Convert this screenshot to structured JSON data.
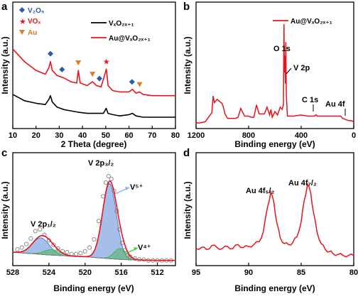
{
  "colors": {
    "vxo": "#000000",
    "au_vxo": "#e8141a",
    "v2o5": "#2b5aa8",
    "vox": "#e8141a",
    "au": "#e07b22",
    "fit_blue": "#3a6fd0",
    "fit_green": "#36b83a",
    "envelope": "#7f7f7f",
    "arrow_blue": "#8db0e8",
    "arrow_green": "#4cd23a"
  },
  "chart_data": [
    {
      "id": "a",
      "type": "line",
      "panel_label": "a",
      "xlabel": "2 Theta (degree)",
      "ylabel": "Intensity (a.u.)",
      "xlim": [
        10,
        80
      ],
      "xticks": [
        "10",
        "20",
        "30",
        "40",
        "50",
        "60",
        "70",
        "80"
      ],
      "grid": false,
      "legend": {
        "placement": "top-right",
        "entries": [
          {
            "label": "VₓO₂ₓ₊₁",
            "series": 0
          },
          {
            "label": "Au@VₓO₂ₓ₊₁",
            "series": 1
          }
        ]
      },
      "marker_legend": [
        {
          "label": "V₂O₅",
          "marker": "diamond",
          "color": "#2b5aa8"
        },
        {
          "label": "VOₓ",
          "marker": "star",
          "color": "#e8141a"
        },
        {
          "label": "Au",
          "marker": "triangle",
          "color": "#e07b22"
        }
      ],
      "series": [
        {
          "name": "VₓO₂ₓ₊₁",
          "color": "#000000",
          "x": [
            10,
            15,
            20,
            24,
            25.5,
            26.2,
            27,
            29,
            32,
            35,
            38,
            42,
            46,
            49,
            50.2,
            51,
            53,
            56,
            60,
            61.5,
            63,
            66,
            70,
            75,
            80
          ],
          "y": [
            0.27,
            0.22,
            0.2,
            0.19,
            0.23,
            0.26,
            0.21,
            0.17,
            0.15,
            0.14,
            0.13,
            0.12,
            0.12,
            0.12,
            0.16,
            0.12,
            0.11,
            0.1,
            0.11,
            0.12,
            0.1,
            0.09,
            0.09,
            0.09,
            0.09
          ]
        },
        {
          "name": "Au@VₓO₂ₓ₊₁",
          "color": "#e8141a",
          "x": [
            10,
            15,
            20,
            24,
            25.5,
            26.2,
            27,
            29,
            32,
            35,
            37.5,
            38.2,
            39,
            42,
            44.3,
            46,
            48,
            50.3,
            51,
            53,
            56,
            60,
            61.5,
            63,
            64.5,
            66,
            70,
            75,
            80
          ],
          "y": [
            0.63,
            0.53,
            0.46,
            0.43,
            0.48,
            0.53,
            0.46,
            0.42,
            0.4,
            0.37,
            0.36,
            0.46,
            0.36,
            0.34,
            0.37,
            0.34,
            0.33,
            0.47,
            0.34,
            0.3,
            0.29,
            0.29,
            0.31,
            0.28,
            0.29,
            0.27,
            0.26,
            0.26,
            0.26
          ]
        }
      ],
      "peak_markers": [
        {
          "x": 26.2,
          "type": "diamond",
          "color": "#2b5aa8"
        },
        {
          "x": 31.2,
          "type": "diamond",
          "color": "#2b5aa8"
        },
        {
          "x": 38.2,
          "type": "triangle",
          "color": "#e07b22"
        },
        {
          "x": 44.3,
          "type": "triangle",
          "color": "#e07b22"
        },
        {
          "x": 47.3,
          "type": "diamond",
          "color": "#2b5aa8"
        },
        {
          "x": 50.3,
          "type": "star",
          "color": "#e8141a"
        },
        {
          "x": 61.3,
          "type": "diamond",
          "color": "#2b5aa8"
        },
        {
          "x": 64.6,
          "type": "triangle",
          "color": "#e07b22"
        }
      ]
    },
    {
      "id": "b",
      "type": "line",
      "panel_label": "b",
      "xlabel": "Binding energy (eV)",
      "ylabel": "Intensity (a.u.)",
      "xlim": [
        1200,
        0
      ],
      "xticks": [
        "1200",
        "800",
        "400",
        "0"
      ],
      "grid": false,
      "legend": {
        "placement": "top-right",
        "entries": [
          {
            "label": "Au@VₓO₂ₓ₊₁",
            "series": 0
          }
        ]
      },
      "annotations": [
        {
          "text": "O 1s",
          "x": 531
        },
        {
          "text": "V 2p",
          "x": 517
        },
        {
          "text": "C 1s",
          "x": 285
        },
        {
          "text": "Au 4f",
          "x": 84
        }
      ],
      "series": [
        {
          "name": "Au@VₓO₂ₓ₊₁",
          "color": "#e8141a",
          "x": [
            1200,
            1170,
            1130,
            1080,
            1070,
            1060,
            1040,
            1020,
            1000,
            990,
            980,
            960,
            940,
            900,
            880,
            860,
            830,
            800,
            780,
            760,
            740,
            720,
            700,
            680,
            660,
            640,
            630,
            620,
            600,
            580,
            560,
            545,
            535,
            531,
            528,
            524,
            520,
            517,
            513,
            505,
            490,
            460,
            400,
            350,
            300,
            290,
            285,
            280,
            250,
            200,
            150,
            100,
            84,
            60,
            40,
            20,
            0
          ],
          "y": [
            0.0,
            0.0,
            0.01,
            0.09,
            0.24,
            0.18,
            0.21,
            0.19,
            0.17,
            0.13,
            0.08,
            0.04,
            0.04,
            0.04,
            0.05,
            0.13,
            0.06,
            0.06,
            0.05,
            0.05,
            0.16,
            0.08,
            0.08,
            0.08,
            0.14,
            0.07,
            0.12,
            0.05,
            0.1,
            0.07,
            0.14,
            0.12,
            0.16,
            0.88,
            0.45,
            0.6,
            0.35,
            0.72,
            0.25,
            0.06,
            0.06,
            0.06,
            0.07,
            0.06,
            0.06,
            0.07,
            0.07,
            0.06,
            0.06,
            0.06,
            0.06,
            0.06,
            0.04,
            0.03,
            0.02,
            0.02,
            0.01
          ]
        }
      ]
    },
    {
      "id": "c",
      "type": "line",
      "panel_label": "c",
      "xlabel": "Binding energy (eV)",
      "ylabel": "Intensity (a.u.)",
      "xlim": [
        528,
        510
      ],
      "xticks": [
        "528",
        "524",
        "520",
        "516",
        "512"
      ],
      "grid": false,
      "annotations": [
        {
          "text": "V 2p₁/₂"
        },
        {
          "text": "V 2p₃/₂"
        },
        {
          "text": "V⁵⁺"
        },
        {
          "text": "V⁴⁺"
        }
      ],
      "components": [
        {
          "name": "V5+ 2p3/2",
          "center": 517.3,
          "fwhm": 1.8,
          "height": 0.82,
          "color": "#3a6fd0"
        },
        {
          "name": "V4+ 2p3/2",
          "center": 516.1,
          "fwhm": 1.6,
          "height": 0.12,
          "color": "#36b83a"
        },
        {
          "name": "V5+ 2p1/2",
          "center": 524.9,
          "fwhm": 2.2,
          "height": 0.18,
          "color": "#3a6fd0"
        },
        {
          "name": "V4+ 2p1/2",
          "center": 523.7,
          "fwhm": 2.0,
          "height": 0.06,
          "color": "#36b83a"
        }
      ],
      "background": {
        "x": [
          528,
          524,
          520,
          516,
          512,
          510
        ],
        "y": [
          0.1,
          0.07,
          0.05,
          0.02,
          0.01,
          0.01
        ]
      },
      "raw_points": {
        "x": [
          527.5,
          527,
          526.5,
          526,
          525.5,
          525,
          524.5,
          524,
          523.5,
          523,
          522.5,
          522,
          521.5,
          521,
          520.5,
          520,
          519.5,
          519,
          518.5,
          518,
          517.7,
          517.4,
          517.1,
          516.8,
          516.5,
          516.2,
          515.9,
          515.6,
          515.3,
          515,
          514.5,
          514,
          513.5,
          513,
          512.5,
          512,
          511.5,
          511,
          510.5
        ],
        "y": [
          0.13,
          0.15,
          0.19,
          0.25,
          0.33,
          0.35,
          0.29,
          0.23,
          0.18,
          0.14,
          0.11,
          0.1,
          0.08,
          0.08,
          0.09,
          0.11,
          0.15,
          0.24,
          0.44,
          0.71,
          0.86,
          0.93,
          0.9,
          0.77,
          0.55,
          0.35,
          0.2,
          0.12,
          0.07,
          0.05,
          0.03,
          0.02,
          0.02,
          0.01,
          0.01,
          0.01,
          0.01,
          0.01,
          0.01
        ]
      }
    },
    {
      "id": "d",
      "type": "line",
      "panel_label": "d",
      "xlabel": "Binding energy (eV)",
      "ylabel": "Intensity (a.u.)",
      "xlim": [
        95,
        80
      ],
      "xticks": [
        "95",
        "90",
        "85",
        "80"
      ],
      "grid": false,
      "annotations": [
        {
          "text": "Au 4f₅/₂",
          "x": 87.8
        },
        {
          "text": "Au 4f₇/₂",
          "x": 84.2
        }
      ],
      "series": [
        {
          "name": "",
          "color": "#e8141a",
          "x": [
            95,
            94.5,
            94,
            93.5,
            93,
            92.5,
            92,
            91.5,
            91,
            90.5,
            90,
            89.5,
            89,
            88.6,
            88.2,
            87.9,
            87.6,
            87.3,
            87,
            86.6,
            86.2,
            85.8,
            85.4,
            85,
            84.7,
            84.4,
            84.1,
            83.8,
            83.5,
            83.1,
            82.7,
            82.3,
            82,
            81.5,
            81,
            80.5,
            80
          ],
          "y": [
            0.13,
            0.14,
            0.12,
            0.16,
            0.14,
            0.13,
            0.15,
            0.13,
            0.17,
            0.14,
            0.15,
            0.17,
            0.2,
            0.3,
            0.55,
            0.7,
            0.6,
            0.38,
            0.24,
            0.18,
            0.17,
            0.19,
            0.25,
            0.4,
            0.62,
            0.78,
            0.7,
            0.48,
            0.3,
            0.18,
            0.12,
            0.1,
            0.08,
            0.07,
            0.06,
            0.06,
            0.06
          ]
        }
      ]
    }
  ]
}
